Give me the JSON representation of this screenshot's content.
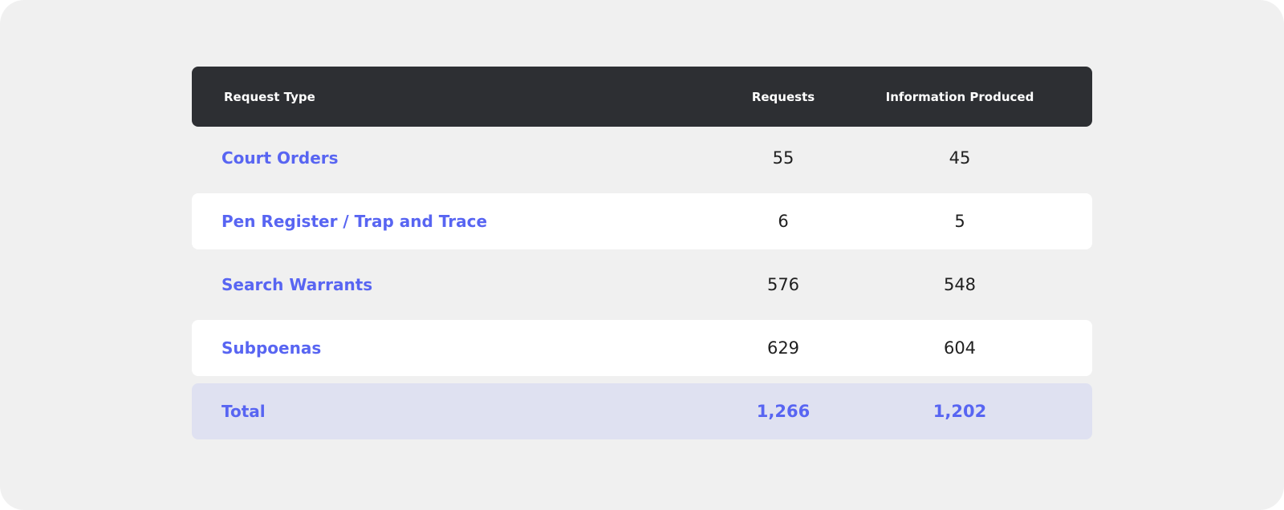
{
  "table": {
    "headers": {
      "type": "Request Type",
      "requests": "Requests",
      "produced": "Information Produced"
    },
    "rows": [
      {
        "type": "Court Orders",
        "requests": "55",
        "produced": "45"
      },
      {
        "type": "Pen Register / Trap and Trace",
        "requests": "6",
        "produced": "5"
      },
      {
        "type": "Search Warrants",
        "requests": "576",
        "produced": "548"
      },
      {
        "type": "Subpoenas",
        "requests": "629",
        "produced": "604"
      }
    ],
    "total": {
      "type": "Total",
      "requests": "1,266",
      "produced": "1,202"
    }
  },
  "colors": {
    "header_bg": "#2d2f33",
    "accent": "#5865f2",
    "total_bg": "#dfe1f1",
    "card_bg": "#f0f0f0"
  }
}
